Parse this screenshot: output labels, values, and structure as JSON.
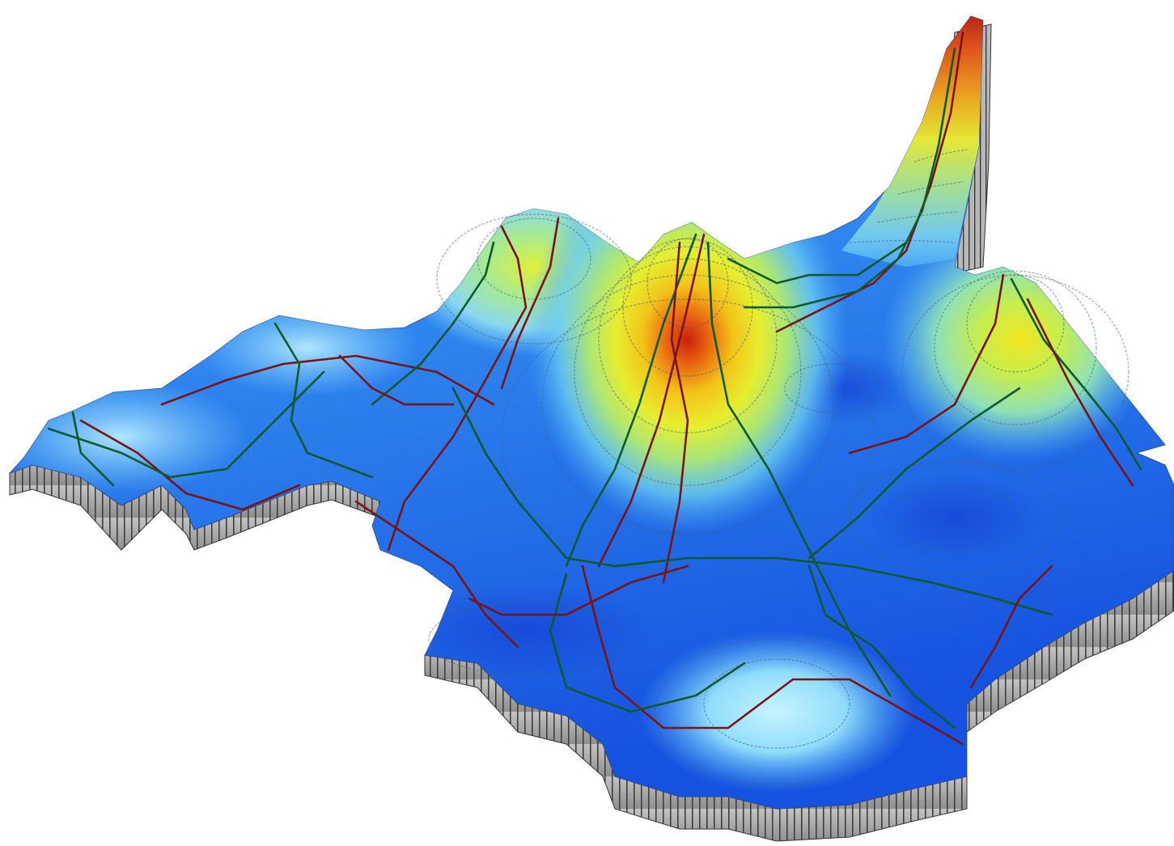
{
  "colors": {
    "background": "#ffffff",
    "surface_low": "#1a5fe8",
    "surface_mid": "#4fb0f5",
    "surface_light": "#a8e4ff",
    "peak_green": "#b8ee6a",
    "peak_yellow": "#f1ee2a",
    "peak_orange": "#f08a12",
    "peak_red": "#c8200c",
    "wall_gray": "#a8a8a8",
    "wall_dark": "#5a5a5a",
    "network_red": "#7a1414",
    "network_green": "#0f5a2a",
    "contour": "#3f5f7a"
  },
  "surface": {
    "kind": "3d-density-surface",
    "peaks": [
      {
        "name": "central-peak",
        "relative_height": 1.0
      },
      {
        "name": "northeast-spike",
        "relative_height": 1.15
      },
      {
        "name": "east-peak",
        "relative_height": 0.55
      },
      {
        "name": "north-peak",
        "relative_height": 0.4
      },
      {
        "name": "southeast-hill",
        "relative_height": 0.25
      },
      {
        "name": "west-ridge",
        "relative_height": 0.2
      }
    ]
  },
  "network": {
    "line_colors": [
      "network_red",
      "network_green"
    ]
  }
}
